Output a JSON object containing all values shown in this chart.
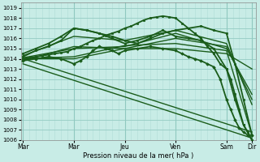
{
  "bg_color": "#c8ece6",
  "grid_major_color": "#90c8c0",
  "grid_minor_color": "#b0dcd6",
  "line_color": "#1a5c1a",
  "ylabel_text": "Pression niveau de la mer( hPa )",
  "x_labels": [
    "Mar",
    "Mar",
    "Jeu",
    "Ven",
    "Sam",
    "Dir"
  ],
  "x_ticks_pos": [
    0,
    48,
    96,
    144,
    192,
    216
  ],
  "xlim": [
    -2,
    220
  ],
  "ylim": [
    1006,
    1019.5
  ],
  "yticks": [
    1006,
    1007,
    1008,
    1009,
    1010,
    1011,
    1012,
    1013,
    1014,
    1015,
    1016,
    1017,
    1018,
    1019
  ],
  "series": [
    {
      "x": [
        0,
        6,
        12,
        18,
        24,
        30,
        36,
        42,
        48,
        54,
        60,
        66,
        72,
        78,
        84,
        90,
        96,
        102,
        108,
        114,
        120,
        126,
        132,
        138,
        144,
        150,
        156,
        162,
        168,
        174,
        180,
        186,
        192,
        196,
        200,
        204,
        208,
        212,
        216
      ],
      "y": [
        1014.0,
        1014.1,
        1014.2,
        1014.3,
        1014.4,
        1014.5,
        1014.6,
        1014.7,
        1015.0,
        1015.2,
        1015.5,
        1015.8,
        1016.0,
        1016.3,
        1016.5,
        1016.7,
        1017.0,
        1017.2,
        1017.5,
        1017.8,
        1018.0,
        1018.1,
        1018.2,
        1018.1,
        1018.0,
        1017.5,
        1017.0,
        1016.5,
        1016.0,
        1015.2,
        1014.5,
        1013.5,
        1013.0,
        1012.0,
        1010.5,
        1009.0,
        1007.5,
        1006.8,
        1006.0
      ],
      "lw": 1.3,
      "marker": "s",
      "ms": 1.8,
      "zorder": 4
    },
    {
      "x": [
        0,
        12,
        24,
        36,
        48,
        60,
        72,
        84,
        96,
        108,
        120,
        132,
        144,
        156,
        168,
        180,
        192,
        200,
        208,
        216
      ],
      "y": [
        1014.2,
        1014.8,
        1015.2,
        1015.8,
        1017.0,
        1016.8,
        1016.5,
        1016.2,
        1015.8,
        1015.5,
        1016.0,
        1016.5,
        1016.8,
        1017.0,
        1017.2,
        1016.8,
        1016.5,
        1013.5,
        1010.0,
        1006.5
      ],
      "lw": 1.3,
      "marker": "s",
      "ms": 1.8,
      "zorder": 4
    },
    {
      "x": [
        0,
        48,
        96,
        144,
        192,
        216
      ],
      "y": [
        1014.3,
        1016.2,
        1015.8,
        1016.8,
        1015.5,
        1009.5
      ],
      "lw": 1.0,
      "marker": null,
      "ms": 0,
      "zorder": 3
    },
    {
      "x": [
        0,
        48,
        96,
        144,
        192,
        216
      ],
      "y": [
        1014.1,
        1015.0,
        1015.2,
        1016.5,
        1015.0,
        1010.5
      ],
      "lw": 1.0,
      "marker": null,
      "ms": 0,
      "zorder": 3
    },
    {
      "x": [
        0,
        48,
        96,
        144,
        192,
        216
      ],
      "y": [
        1013.8,
        1015.2,
        1015.0,
        1016.0,
        1015.2,
        1010.0
      ],
      "lw": 1.0,
      "marker": null,
      "ms": 0,
      "zorder": 3
    },
    {
      "x": [
        0,
        216
      ],
      "y": [
        1013.5,
        1006.2
      ],
      "lw": 1.0,
      "marker": null,
      "ms": 0,
      "zorder": 3
    },
    {
      "x": [
        0,
        216
      ],
      "y": [
        1014.0,
        1006.8
      ],
      "lw": 1.0,
      "marker": null,
      "ms": 0,
      "zorder": 3
    },
    {
      "x": [
        0,
        48,
        96,
        144,
        192,
        216
      ],
      "y": [
        1014.0,
        1014.2,
        1015.3,
        1015.5,
        1014.8,
        1006.5
      ],
      "lw": 1.0,
      "marker": null,
      "ms": 0,
      "zorder": 3
    },
    {
      "x": [
        0,
        48,
        96,
        144,
        192,
        216
      ],
      "y": [
        1014.0,
        1014.0,
        1015.0,
        1015.0,
        1014.5,
        1013.0
      ],
      "lw": 1.0,
      "marker": null,
      "ms": 0,
      "zorder": 3
    },
    {
      "x": [
        0,
        12,
        24,
        36,
        48,
        60,
        72,
        84,
        96,
        108,
        120,
        132,
        144,
        156,
        168,
        180,
        192,
        200,
        208,
        216
      ],
      "y": [
        1014.5,
        1015.0,
        1015.5,
        1016.2,
        1017.0,
        1016.8,
        1016.5,
        1016.0,
        1015.5,
        1015.8,
        1016.2,
        1016.8,
        1016.2,
        1016.0,
        1015.8,
        1015.0,
        1013.0,
        1010.0,
        1007.5,
        1006.0
      ],
      "lw": 1.3,
      "marker": "s",
      "ms": 1.8,
      "zorder": 4
    },
    {
      "x": [
        0,
        12,
        24,
        36,
        48,
        54,
        60,
        66,
        72,
        78,
        84,
        90,
        96,
        108,
        120,
        132,
        144,
        150,
        156,
        162,
        168,
        174,
        180,
        186,
        192,
        196,
        200,
        204,
        208,
        212,
        216
      ],
      "y": [
        1013.8,
        1014.0,
        1014.2,
        1014.0,
        1013.5,
        1013.8,
        1014.2,
        1014.8,
        1015.2,
        1015.0,
        1014.8,
        1014.5,
        1014.8,
        1015.0,
        1015.2,
        1015.0,
        1014.8,
        1014.5,
        1014.2,
        1014.0,
        1013.8,
        1013.5,
        1013.2,
        1012.0,
        1010.0,
        1009.0,
        1008.0,
        1007.2,
        1006.8,
        1006.5,
        1006.5
      ],
      "lw": 1.3,
      "marker": "D",
      "ms": 1.8,
      "zorder": 4
    }
  ]
}
